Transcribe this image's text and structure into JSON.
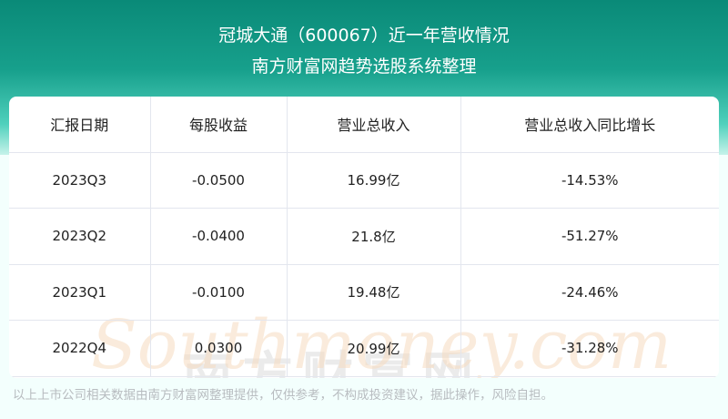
{
  "header": {
    "title": "冠城大通（600067）近一年营收情况",
    "subtitle": "南方财富网趋势选股系统整理"
  },
  "table": {
    "columns": [
      "汇报日期",
      "每股收益",
      "营业总收入",
      "营业总收入同比增长"
    ],
    "rows": [
      [
        "2023Q3",
        "-0.0500",
        "16.99亿",
        "-14.53%"
      ],
      [
        "2023Q2",
        "-0.0400",
        "21.8亿",
        "-51.27%"
      ],
      [
        "2023Q1",
        "-0.0100",
        "19.48亿",
        "-24.46%"
      ],
      [
        "2022Q4",
        "0.0300",
        "20.99亿",
        "-31.28%"
      ]
    ]
  },
  "watermark": {
    "cn": "南方财富网",
    "en": "Southmoney.com"
  },
  "footer": "以上上市公司相关数据由南方财富网整理提供，仅供参考，不构成投资建议，据此操作，风险自担。",
  "colors": {
    "banner": "#0a8a78",
    "background": "#f3fffd"
  }
}
